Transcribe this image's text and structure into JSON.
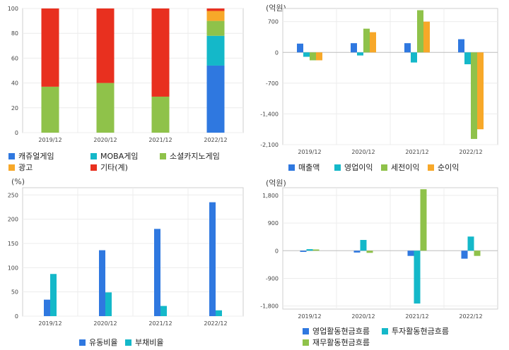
{
  "chart_data": [
    {
      "type": "bar",
      "stacked": true,
      "categories": [
        "2019/12",
        "2020/12",
        "2021/12",
        "2022/12"
      ],
      "series": [
        {
          "name": "캐쥬얼게임",
          "color": "#2f78e0",
          "values": [
            0,
            0,
            0,
            54
          ]
        },
        {
          "name": "MOBA게임",
          "color": "#14b8c9",
          "values": [
            0,
            0,
            0,
            24
          ]
        },
        {
          "name": "소셜카지노게임",
          "color": "#8fc24a",
          "values": [
            37,
            40,
            29,
            12
          ]
        },
        {
          "name": "광고",
          "color": "#f7a829",
          "values": [
            0,
            0,
            0,
            8
          ]
        },
        {
          "name": "기타(계)",
          "color": "#e8301f",
          "values": [
            63,
            60,
            71,
            2
          ]
        }
      ],
      "ylim": [
        0,
        100
      ],
      "yticks": [
        0,
        20,
        40,
        60,
        80,
        100
      ],
      "ytick_labels": [
        "0",
        "20",
        "40",
        "60",
        "80",
        "100"
      ],
      "unit_label": "",
      "grid": true,
      "legend": "bottom"
    },
    {
      "type": "bar",
      "categories": [
        "2019/12",
        "2020/12",
        "2021/12",
        "2022/12"
      ],
      "series": [
        {
          "name": "매출액",
          "color": "#2f78e0",
          "values": [
            200,
            210,
            210,
            300
          ]
        },
        {
          "name": "영업이익",
          "color": "#14b8c9",
          "values": [
            -100,
            -70,
            -230,
            -270
          ]
        },
        {
          "name": "세전이익",
          "color": "#8fc24a",
          "values": [
            -180,
            540,
            960,
            -1970
          ]
        },
        {
          "name": "순이익",
          "color": "#f7a829",
          "values": [
            -180,
            460,
            700,
            -1750
          ]
        }
      ],
      "ylim": [
        -2100,
        1000
      ],
      "yticks": [
        -2100,
        -1400,
        -700,
        0,
        700
      ],
      "ytick_labels": [
        "-2,100",
        "-1,400",
        "-700",
        "0",
        "700"
      ],
      "unit_label": "(억원)",
      "grid": true,
      "legend": "bottom"
    },
    {
      "type": "bar",
      "categories": [
        "2019/12",
        "2020/12",
        "2021/12",
        "2022/12"
      ],
      "series": [
        {
          "name": "유동비율",
          "color": "#2f78e0",
          "values": [
            34,
            136,
            180,
            235
          ]
        },
        {
          "name": "부채비율",
          "color": "#14b8c9",
          "values": [
            87,
            49,
            21,
            12
          ]
        }
      ],
      "ylim": [
        0,
        265
      ],
      "yticks": [
        0,
        50,
        100,
        150,
        200,
        250
      ],
      "ytick_labels": [
        "0",
        "50",
        "100",
        "150",
        "200",
        "250"
      ],
      "unit_label": "(%)",
      "grid": true,
      "legend": "bottom"
    },
    {
      "type": "bar",
      "categories": [
        "2019/12",
        "2020/12",
        "2021/12",
        "2022/12"
      ],
      "series": [
        {
          "name": "영업활동현금흐름",
          "color": "#2f78e0",
          "values": [
            -40,
            -60,
            -170,
            -260
          ]
        },
        {
          "name": "투자활동현금흐름",
          "color": "#14b8c9",
          "values": [
            50,
            350,
            -1720,
            460
          ]
        },
        {
          "name": "재무활동현금흐름",
          "color": "#8fc24a",
          "values": [
            40,
            -70,
            2000,
            -170
          ]
        }
      ],
      "ylim": [
        -1900,
        2050
      ],
      "yticks": [
        -1800,
        -900,
        0,
        900,
        1800
      ],
      "ytick_labels": [
        "-1,800",
        "-900",
        "0",
        "900",
        "1,800"
      ],
      "unit_label": "(억원)",
      "grid": true,
      "legend": "bottom"
    }
  ]
}
